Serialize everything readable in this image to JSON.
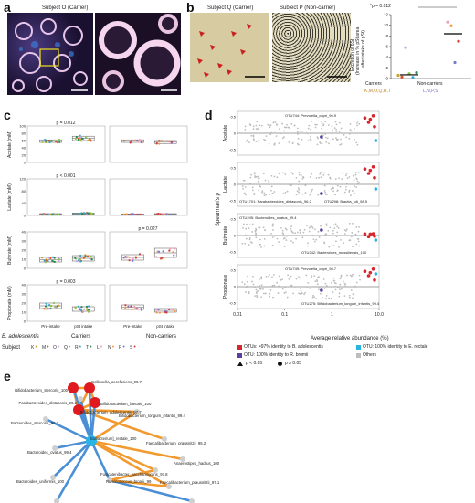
{
  "panel_a": {
    "label": "a",
    "title": "Subject O (Carrier)"
  },
  "panel_b": {
    "label": "b",
    "img1_title": "Subject Q (Carrier)",
    "img2_title": "Subject P (Non-carrier)",
    "ylabel_line1": "Excretion of pSt",
    "ylabel_line2": "(Increase in % pSt area",
    "ylabel_line3": "after intake of pSt)",
    "pvalue": "*p = 0.012",
    "xcat_carriers": "Carriers",
    "xcat_noncarriers": "Non-carriers",
    "carriers_letters": "K,M,O,Q,R,T",
    "noncarriers_letters": "L,N,P,S",
    "yticks": [
      "0",
      "2",
      "4",
      "6",
      "8",
      "10",
      "12"
    ]
  },
  "panel_c": {
    "label": "c",
    "rows": [
      {
        "ylabel": "Acetate (mM)",
        "yticks": [
          "0",
          "20",
          "40",
          "60",
          "80",
          "100"
        ],
        "p_carriers": "p = 0.012",
        "p_noncarriers": ""
      },
      {
        "ylabel": "Lactate (mM)",
        "yticks": [
          "0",
          "40",
          "80",
          "120"
        ],
        "p_carriers": "p < 0.001",
        "p_noncarriers": ""
      },
      {
        "ylabel": "Butyrate (mM)",
        "yticks": [
          "0",
          "10",
          "20",
          "30",
          "40"
        ],
        "p_carriers": "",
        "p_noncarriers": "p = 0.027"
      },
      {
        "ylabel": "Propionate (mM)",
        "yticks": [
          "0",
          "10",
          "20",
          "30",
          "40"
        ],
        "p_carriers": "p = 0.003",
        "p_noncarriers": ""
      }
    ],
    "xcat_pre": "Pre-intake",
    "xcat_post": "pSt intake",
    "group_carriers": "Carriers",
    "group_noncarriers": "Non-carriers",
    "b_adolescentis_label": "B. adolescentis",
    "subject_label": "Subject",
    "subjects": [
      {
        "id": "K",
        "color": "#c9a227"
      },
      {
        "id": "M",
        "color": "#e0562b"
      },
      {
        "id": "O",
        "color": "#c7a0e0"
      },
      {
        "id": "Q",
        "color": "#8ac24a"
      },
      {
        "id": "R",
        "color": "#3aa6c9"
      },
      {
        "id": "T",
        "color": "#2e8a57"
      },
      {
        "id": "L",
        "color": "#f0a0b8"
      },
      {
        "id": "N",
        "color": "#f59a45"
      },
      {
        "id": "P",
        "color": "#7a7ad6"
      },
      {
        "id": "S",
        "color": "#d43f3f"
      }
    ]
  },
  "panel_d": {
    "label": "d",
    "ylabel": "Spearman's ρ",
    "xlabel": "Average relative abundance (%)",
    "xticks": [
      "0.01",
      "0.1",
      "1",
      "10.0"
    ],
    "rows": [
      {
        "name": "Acetate",
        "ann": [
          "OTU744: Prevotella_copri_96.9"
        ]
      },
      {
        "name": "Lactate",
        "ann": [
          "OTU1701: Parabacteroides_distasonis_96.2",
          "OTU298: Blautia_luti_98.5"
        ]
      },
      {
        "name": "Butyrate",
        "ann": [
          "OTU245: Bacteroides_ovatus_99.4",
          "OTU242: Bacteroides_massiliensis_100"
        ]
      },
      {
        "name": "Propionate",
        "ann": [
          "OTU749: Prevotella_copri_98.7",
          "OTU275: Bifidobacterium_longum_infantis_99.4"
        ]
      }
    ],
    "yticks": [
      "0.5",
      "0",
      "-0.5"
    ],
    "legend": {
      "red": "OTUs: >97% identity to B. adolescentis",
      "cyan": "OTU: 100% identity to E. rectale",
      "purple": "OTU: 100% identity to R. bromii",
      "gray": "Others",
      "triangle": "p < 0.05",
      "circle": "p ≥ 0.05"
    },
    "colors": {
      "red": "#d9262c",
      "cyan": "#27b5e0",
      "purple": "#5a3fa0",
      "gray": "#bdbdbd"
    }
  },
  "panel_e": {
    "label": "e",
    "nodes": [
      "Collinsella_aerofaciens_99.7",
      "Bifidobacterium_stercoris_100",
      "Bifidobacterium_faecale_100",
      "Bifidobacterium_adolescentis_97.7",
      "Parabacteroides_distasonis_96.2",
      "Bifidobacterium_longum_infantis_99.4",
      "Bacteroides_stercoris_96.2",
      "Faecalibacterium_prausnitzii_95.2",
      "[Eubacterium]_rectale_100",
      "Bacteroides_ovatus_99.4",
      "Anaerostipes_hadrus_100",
      "Fusicatenibacter_saccharivorans_97.8",
      "Bacteroides_uniformis_100",
      "Ruminococcus_bromii_99",
      "Faecalibacterium_prausnitzii_97.1",
      "Bacteroides_massiliensis_100",
      "Bifidobacterium_pseudocatenulatum_100"
    ],
    "colors": {
      "red": "#e0191f",
      "cyan": "#28b4e5",
      "gray": "#cfcfcf",
      "pos": "#f29a2e",
      "neg": "#4a8fd6"
    }
  }
}
